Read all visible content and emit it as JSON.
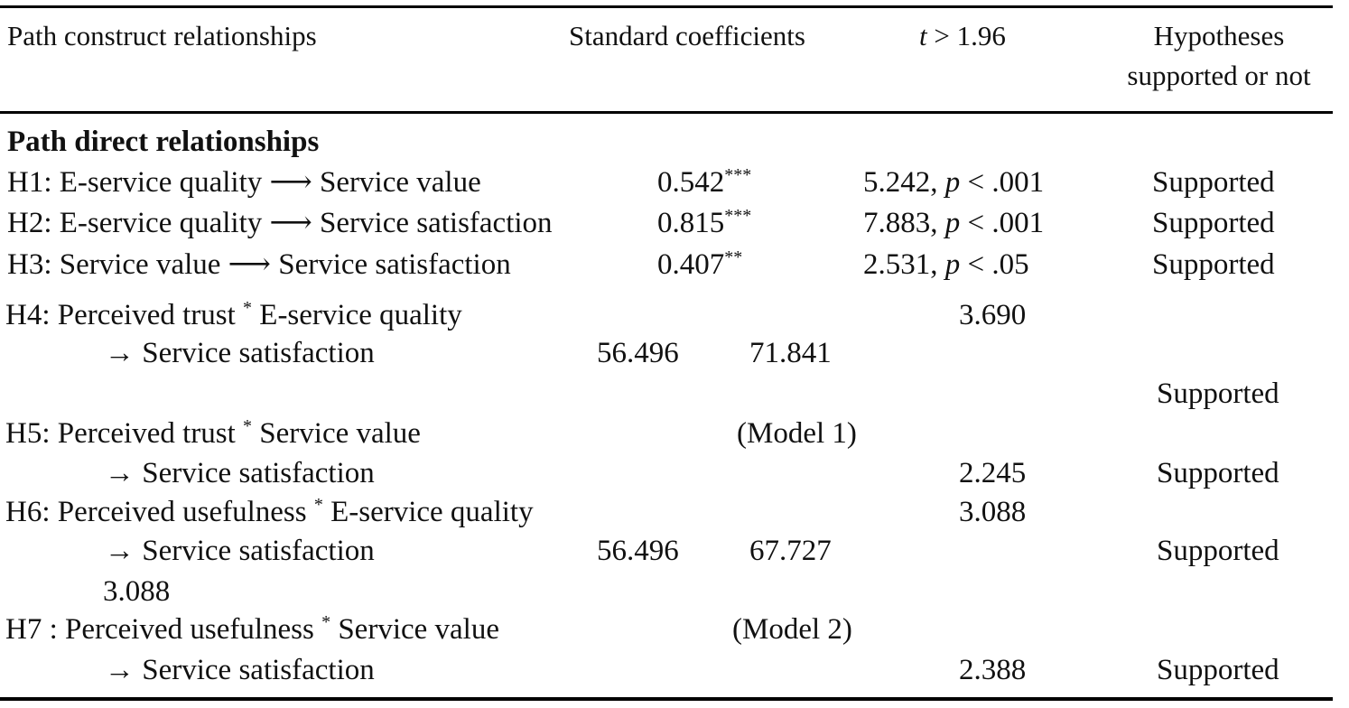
{
  "header": {
    "col1": "Path construct relationships",
    "col2": "Standard coefficients",
    "col3_italic": "t",
    "col3_rest": " > 1.96",
    "col4_line1": "Hypotheses",
    "col4_line2": "supported or not"
  },
  "section_title": "Path direct relationships",
  "direct_rows": [
    {
      "label": "H1: E-service quality ⟶ Service value",
      "coef": "0.542",
      "sig": "***",
      "t_value": "5.242, ",
      "p_italic": "p",
      "p_rest": " < .001",
      "result": "Supported"
    },
    {
      "label": "H2: E-service quality ⟶ Service satisfaction",
      "coef": "0.815",
      "sig": "***",
      "t_value": "7.883, ",
      "p_italic": "p",
      "p_rest": " < .001",
      "result": "Supported"
    },
    {
      "label": "H3: Service value ⟶ Service satisfaction",
      "coef": "0.407",
      "sig": "**",
      "t_value": "2.531, ",
      "p_italic": "p",
      "p_rest": " < .05",
      "result": "Supported"
    }
  ],
  "moderation": {
    "h4_pre": "H4: Perceived trust ",
    "h4_post": " E-service quality",
    "h4_t": "3.690",
    "h4_arrow": "→ Service satisfaction",
    "model1_a": "56.496",
    "model1_b": "71.841",
    "supported_h4": "Supported",
    "h5_pre": "H5: Perceived trust ",
    "h5_post": " Service value",
    "model1_label": "(Model 1)",
    "h5_arrow": "→ Service satisfaction",
    "h5_t": "2.245",
    "supported_h5": "Supported",
    "h6_pre": "H6: Perceived usefulness ",
    "h6_post": " E-service quality",
    "h6_t": "3.088",
    "h6_arrow": "→ Service satisfaction",
    "model2_a": "56.496",
    "model2_b": "67.727",
    "supported_h6": "Supported",
    "h6_extra": "3.088",
    "h7_pre": "H7 : Perceived usefulness ",
    "h7_post": " Service value",
    "model2_label": "(Model 2)",
    "h7_arrow": "→ Service satisfaction",
    "h7_t": "2.388",
    "supported_h7": "Supported",
    "star": "*"
  }
}
